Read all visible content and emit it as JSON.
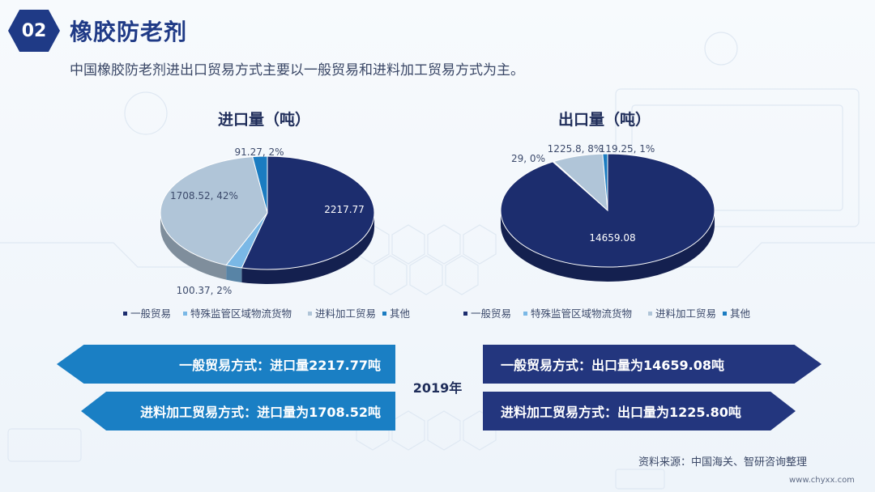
{
  "header": {
    "badge": "02",
    "title": "橡胶防老剂",
    "subtitle": "中国橡胶防老剂进出口贸易方式主要以一般贸易和进料加工贸易方式为主。"
  },
  "colors": {
    "general": "#1c2d6e",
    "special": "#7ab8e6",
    "processing": "#b0c5d8",
    "other": "#1b7cc1"
  },
  "chart_data": [
    {
      "type": "pie",
      "title": "进口量（吨）",
      "legend_position": "bottom",
      "slices": [
        {
          "name": "一般贸易",
          "value": 2217.77,
          "label": "2217.77",
          "color": "#1c2d6e"
        },
        {
          "name": "特殊监管区域物流货物",
          "value": 100.37,
          "label": "100.37, 2%",
          "color": "#7ab8e6"
        },
        {
          "name": "进料加工贸易",
          "value": 1708.52,
          "label": "1708.52, 42%",
          "color": "#b0c5d8"
        },
        {
          "name": "其他",
          "value": 91.27,
          "label": "91.27, 2%",
          "color": "#1b7cc1"
        }
      ]
    },
    {
      "type": "pie",
      "title": "出口量（吨）",
      "legend_position": "bottom",
      "slices": [
        {
          "name": "一般贸易",
          "value": 14659.08,
          "label": "14659.08",
          "color": "#1c2d6e"
        },
        {
          "name": "特殊监管区域物流货物",
          "value": 29,
          "label": "29, 0%",
          "color": "#7ab8e6"
        },
        {
          "name": "进料加工贸易",
          "value": 1225.8,
          "label": "1225.8, 8%",
          "color": "#b0c5d8"
        },
        {
          "name": "其他",
          "value": 119.25,
          "label": "119.25, 1%",
          "color": "#1b7cc1"
        }
      ]
    }
  ],
  "banners": {
    "left_top": "一般贸易方式：进口量2217.77吨",
    "left_bottom": "进料加工贸易方式：进口量为1708.52吨",
    "right_top": "一般贸易方式：出口量为14659.08吨",
    "right_bottom": "进料加工贸易方式：出口量为1225.80吨",
    "year": "2019年"
  },
  "footer": {
    "source": "资料来源：中国海关、智研咨询整理",
    "watermark": "www.chyxx.com"
  }
}
